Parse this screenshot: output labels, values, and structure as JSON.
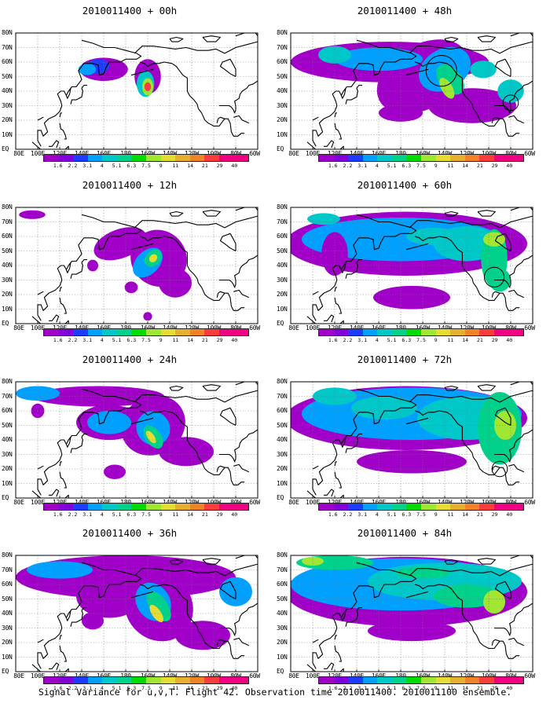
{
  "caption": "Signal Variance for u,v,T. Flight 42. Observation time 2010011400. 2010011100 ensemble.",
  "panels": [
    {
      "title": "2010011400 + 00h"
    },
    {
      "title": "2010011400 + 48h"
    },
    {
      "title": "2010011400 + 12h"
    },
    {
      "title": "2010011400 + 60h"
    },
    {
      "title": "2010011400 + 24h"
    },
    {
      "title": "2010011400 + 72h"
    },
    {
      "title": "2010011400 + 36h"
    },
    {
      "title": "2010011400 + 84h"
    }
  ],
  "lat_labels": [
    "80N",
    "70N",
    "60N",
    "50N",
    "40N",
    "30N",
    "20N",
    "10N",
    "EQ"
  ],
  "lon_labels": [
    "80E",
    "100E",
    "120E",
    "140E",
    "160E",
    "180",
    "160W",
    "140W",
    "120W",
    "100W",
    "80W",
    "60W"
  ],
  "colorbar": {
    "labels": [
      "1.6",
      "2.2",
      "3.1",
      "4",
      "5.1",
      "6.3",
      "7.5",
      "9",
      "11",
      "14",
      "21",
      "29",
      "40"
    ],
    "colors": [
      "#a000c8",
      "#8200dc",
      "#1e3cff",
      "#00a0ff",
      "#00c8c8",
      "#00d28c",
      "#00dc00",
      "#a0e632",
      "#e6dc32",
      "#e6af2d",
      "#f08228",
      "#fa3c3c",
      "#f00082"
    ]
  },
  "map": {
    "lon_range": [
      80,
      300
    ],
    "lat_range": [
      0,
      80
    ]
  }
}
